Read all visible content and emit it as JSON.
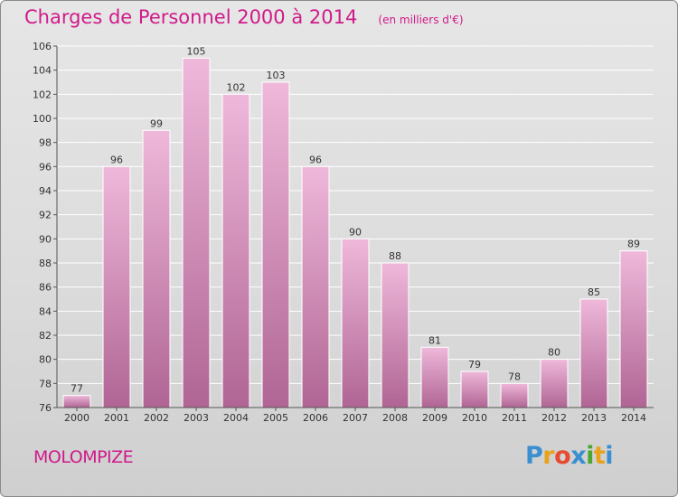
{
  "title": "Charges de Personnel 2000 à 2014",
  "subtitle": "(en milliers d'€)",
  "commune": "MOLOMPIZE",
  "logo": {
    "letters": [
      "P",
      "r",
      "o",
      "x",
      "i",
      "t",
      "i"
    ],
    "colors": [
      "#3a8fd0",
      "#e8a21c",
      "#e64b2f",
      "#3a8fd0",
      "#4aa832",
      "#e8a21c",
      "#3a8fd0"
    ]
  },
  "colors": {
    "title": "#d01a8a",
    "bar_top": "#efb8da",
    "bar_bottom": "#b06594"
  },
  "chart_data": {
    "type": "bar",
    "title": "Charges de Personnel 2000 à 2014",
    "subtitle": "(en milliers d'€)",
    "categories": [
      "2000",
      "2001",
      "2002",
      "2003",
      "2004",
      "2005",
      "2006",
      "2007",
      "2008",
      "2009",
      "2010",
      "2011",
      "2012",
      "2013",
      "2014"
    ],
    "values": [
      77,
      96,
      99,
      105,
      102,
      103,
      96,
      90,
      88,
      81,
      79,
      78,
      80,
      85,
      89
    ],
    "ylim": [
      76,
      106
    ],
    "yticks": [
      76,
      78,
      80,
      82,
      84,
      86,
      88,
      90,
      92,
      94,
      96,
      98,
      100,
      102,
      104,
      106
    ],
    "grid": true,
    "xlabel": "",
    "ylabel": ""
  }
}
